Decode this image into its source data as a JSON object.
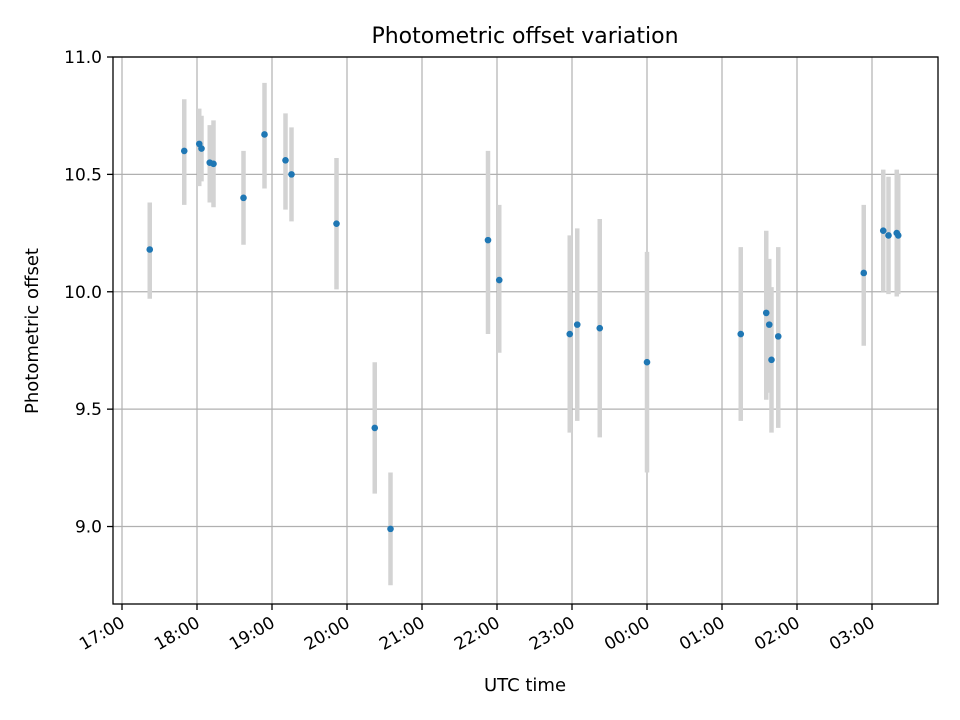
{
  "chart_data": {
    "type": "scatter",
    "title": "Photometric offset variation",
    "xlabel": "UTC time",
    "ylabel": "Photometric offset",
    "x_unit": "hours since 17:00 UTC",
    "xlim": [
      -0.12,
      10.88
    ],
    "ylim": [
      8.67,
      11.0
    ],
    "x_ticks": [
      {
        "value": 0,
        "label": "17:00"
      },
      {
        "value": 1,
        "label": "18:00"
      },
      {
        "value": 2,
        "label": "19:00"
      },
      {
        "value": 3,
        "label": "20:00"
      },
      {
        "value": 4,
        "label": "21:00"
      },
      {
        "value": 5,
        "label": "22:00"
      },
      {
        "value": 6,
        "label": "23:00"
      },
      {
        "value": 7,
        "label": "00:00"
      },
      {
        "value": 8,
        "label": "01:00"
      },
      {
        "value": 9,
        "label": "02:00"
      },
      {
        "value": 10,
        "label": "03:00"
      }
    ],
    "y_ticks": [
      {
        "value": 9.0,
        "label": "9.0"
      },
      {
        "value": 9.5,
        "label": "9.5"
      },
      {
        "value": 10.0,
        "label": "10.0"
      },
      {
        "value": 10.5,
        "label": "10.5"
      },
      {
        "value": 11.0,
        "label": "11.0"
      }
    ],
    "grid": true,
    "points": [
      {
        "x": 0.37,
        "y": 10.18,
        "lo": 9.97,
        "hi": 10.38
      },
      {
        "x": 0.83,
        "y": 10.6,
        "lo": 10.37,
        "hi": 10.82
      },
      {
        "x": 1.03,
        "y": 10.63,
        "lo": 10.45,
        "hi": 10.78
      },
      {
        "x": 1.06,
        "y": 10.61,
        "lo": 10.47,
        "hi": 10.75
      },
      {
        "x": 1.17,
        "y": 10.55,
        "lo": 10.38,
        "hi": 10.71
      },
      {
        "x": 1.22,
        "y": 10.545,
        "lo": 10.36,
        "hi": 10.73
      },
      {
        "x": 1.62,
        "y": 10.4,
        "lo": 10.2,
        "hi": 10.6
      },
      {
        "x": 1.9,
        "y": 10.67,
        "lo": 10.44,
        "hi": 10.89
      },
      {
        "x": 2.18,
        "y": 10.56,
        "lo": 10.35,
        "hi": 10.76
      },
      {
        "x": 2.26,
        "y": 10.5,
        "lo": 10.3,
        "hi": 10.7
      },
      {
        "x": 2.86,
        "y": 10.29,
        "lo": 10.01,
        "hi": 10.57
      },
      {
        "x": 3.37,
        "y": 9.42,
        "lo": 9.14,
        "hi": 9.7
      },
      {
        "x": 3.58,
        "y": 8.99,
        "lo": 8.75,
        "hi": 9.23
      },
      {
        "x": 4.88,
        "y": 10.22,
        "lo": 9.82,
        "hi": 10.6
      },
      {
        "x": 5.03,
        "y": 10.05,
        "lo": 9.74,
        "hi": 10.37
      },
      {
        "x": 5.97,
        "y": 9.82,
        "lo": 9.4,
        "hi": 10.24
      },
      {
        "x": 6.07,
        "y": 9.86,
        "lo": 9.45,
        "hi": 10.27
      },
      {
        "x": 6.37,
        "y": 9.845,
        "lo": 9.38,
        "hi": 10.31
      },
      {
        "x": 7.0,
        "y": 9.7,
        "lo": 9.23,
        "hi": 10.17
      },
      {
        "x": 8.25,
        "y": 9.82,
        "lo": 9.45,
        "hi": 10.19
      },
      {
        "x": 8.59,
        "y": 9.91,
        "lo": 9.54,
        "hi": 10.26
      },
      {
        "x": 8.63,
        "y": 9.86,
        "lo": 9.57,
        "hi": 10.14
      },
      {
        "x": 8.66,
        "y": 9.71,
        "lo": 9.4,
        "hi": 10.02
      },
      {
        "x": 8.75,
        "y": 9.81,
        "lo": 9.42,
        "hi": 10.19
      },
      {
        "x": 9.89,
        "y": 10.08,
        "lo": 9.77,
        "hi": 10.37
      },
      {
        "x": 10.15,
        "y": 10.26,
        "lo": 10.0,
        "hi": 10.52
      },
      {
        "x": 10.22,
        "y": 10.24,
        "lo": 9.99,
        "hi": 10.49
      },
      {
        "x": 10.33,
        "y": 10.25,
        "lo": 9.98,
        "hi": 10.52
      },
      {
        "x": 10.35,
        "y": 10.24,
        "lo": 9.99,
        "hi": 10.5
      }
    ],
    "marker_color": "#1f77b4",
    "errorbar_color": "#d3d3d3"
  }
}
